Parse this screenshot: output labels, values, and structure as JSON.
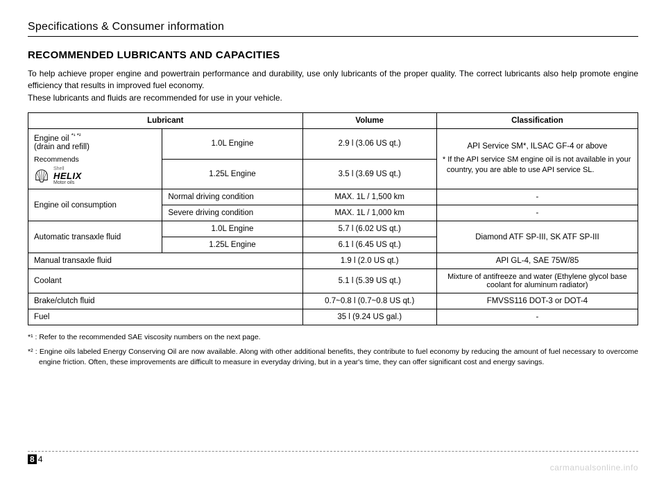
{
  "header": {
    "title": "Specifications & Consumer information"
  },
  "section": {
    "title": "RECOMMENDED LUBRICANTS AND CAPACITIES",
    "intro": "To help achieve proper engine and powertrain performance and durability, use only lubricants of the proper quality. The correct lubricants also help promote engine efficiency that results in improved fuel economy.\nThese lubricants and fluids are recommended for use in your vehicle."
  },
  "table": {
    "headers": {
      "lubricant": "Lubricant",
      "volume": "Volume",
      "classification": "Classification"
    },
    "engine_oil": {
      "label": "Engine oil ",
      "sup": "*¹ *²",
      "drain": "(drain and refill)",
      "recommends": "Recommends",
      "helix_shell": "Shell",
      "helix_main": "HELIX",
      "helix_sub": "Motor oils",
      "row1_engine": "1.0L Engine",
      "row1_vol": "2.9 l (3.06 US qt.)",
      "row2_engine": "1.25L Engine",
      "row2_vol": "3.5 l (3.69 US qt.)",
      "classification_top": "API Service SM*, ILSAC GF-4 or above",
      "classification_note": "* If the API service SM engine oil is not available in your country, you are able to use API service SL."
    },
    "oil_consumption": {
      "label": "Engine oil consumption",
      "row1_cond": "Normal driving condition",
      "row1_vol": "MAX. 1L / 1,500 km",
      "row1_class": "-",
      "row2_cond": "Severe driving condition",
      "row2_vol": "MAX. 1L / 1,000 km",
      "row2_class": "-"
    },
    "atf": {
      "label": "Automatic transaxle fluid",
      "row1_engine": "1.0L Engine",
      "row1_vol": "5.7 l (6.02 US qt.)",
      "row2_engine": "1.25L Engine",
      "row2_vol": "6.1 l (6.45 US qt.)",
      "classification": "Diamond ATF SP-III, SK ATF SP-III"
    },
    "mtf": {
      "label": "Manual transaxle fluid",
      "vol": "1.9 l (2.0 US qt.)",
      "classification": "API GL-4, SAE 75W/85"
    },
    "coolant": {
      "label": "Coolant",
      "vol": "5.1 l (5.39 US qt.)",
      "classification": "Mixture of antifreeze and water (Ethylene glycol base coolant for aluminum radiator)"
    },
    "brake": {
      "label": "Brake/clutch fluid",
      "vol": "0.7~0.8 l (0.7~0.8 US qt.)",
      "classification": "FMVSS116 DOT-3 or DOT-4"
    },
    "fuel": {
      "label": "Fuel",
      "vol": "35 l (9.24 US gal.)",
      "classification": "-"
    }
  },
  "footnotes": {
    "fn1": "*¹ : Refer to the recommended SAE viscosity numbers on the next page.",
    "fn2": "*² : Engine oils labeled Energy Conserving Oil are now available. Along with other additional benefits, they contribute to fuel economy by reducing the amount of fuel necessary to overcome engine friction. Often, these improvements are difficult to measure in everyday driving, but in a year's time, they can offer significant cost and energy savings."
  },
  "page": {
    "chapter": "8",
    "num": "4"
  },
  "watermark": "carmanualsonline.info",
  "colors": {
    "text": "#000000",
    "background": "#ffffff",
    "watermark": "#d0d0d0",
    "border": "#000000"
  },
  "fontsize": {
    "header": 16,
    "section": 15,
    "body": 12,
    "table": 11.5,
    "footnote": 10.5
  }
}
